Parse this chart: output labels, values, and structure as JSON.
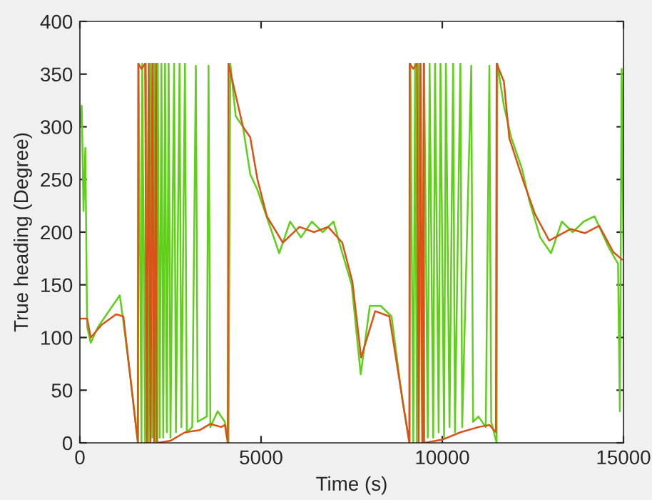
{
  "chart_data": {
    "type": "line",
    "xlabel": "Time (s)",
    "ylabel": "True heading (Degree)",
    "xlim": [
      0,
      15000
    ],
    "xticks": [
      0,
      5000,
      10000,
      15000
    ],
    "ylim": [
      0,
      400
    ],
    "yticks": [
      0,
      50,
      100,
      150,
      200,
      250,
      300,
      350,
      400
    ],
    "grid": false,
    "marker": "none",
    "line_style": "solid",
    "series": [
      {
        "color": "#5fcf1a",
        "x": [
          0,
          50,
          100,
          150,
          200,
          300,
          500,
          700,
          900,
          1100,
          1200,
          1400,
          1600,
          1620,
          1700,
          1720,
          1800,
          1820,
          1900,
          1950,
          2000,
          2050,
          2100,
          2150,
          2200,
          2250,
          2300,
          2350,
          2400,
          2450,
          2500,
          2600,
          2650,
          2750,
          2800,
          2900,
          2950,
          3100,
          3200,
          3250,
          3500,
          3550,
          3600,
          3800,
          4000,
          4100,
          4150,
          4300,
          4500,
          4700,
          4900,
          5100,
          5300,
          5500,
          5800,
          6100,
          6400,
          6700,
          7000,
          7200,
          7500,
          7750,
          8000,
          8300,
          8600,
          8900,
          9100,
          9120,
          9200,
          9250,
          9300,
          9350,
          9450,
          9500,
          9600,
          9650,
          9750,
          9800,
          9900,
          9950,
          10050,
          10100,
          10200,
          10300,
          10350,
          10500,
          10550,
          10800,
          10850,
          11000,
          11200,
          11300,
          11350,
          11500,
          11520,
          11700,
          11900,
          12200,
          12400,
          12700,
          13000,
          13300,
          13600,
          13900,
          14200,
          14400,
          14600,
          14850,
          14900,
          14950,
          15000
        ],
        "values": [
          300,
          320,
          220,
          280,
          110,
          95,
          110,
          120,
          130,
          140,
          115,
          60,
          0,
          360,
          0,
          360,
          0,
          360,
          0,
          360,
          5,
          360,
          0,
          360,
          5,
          360,
          5,
          360,
          10,
          360,
          5,
          360,
          10,
          360,
          15,
          360,
          10,
          15,
          358,
          20,
          25,
          358,
          15,
          30,
          20,
          0,
          360,
          310,
          300,
          255,
          240,
          220,
          200,
          180,
          210,
          195,
          210,
          200,
          210,
          185,
          150,
          65,
          130,
          130,
          120,
          40,
          0,
          360,
          0,
          360,
          0,
          360,
          0,
          360,
          5,
          360,
          5,
          360,
          10,
          360,
          5,
          360,
          15,
          360,
          10,
          360,
          15,
          358,
          20,
          25,
          15,
          358,
          20,
          0,
          360,
          320,
          290,
          260,
          230,
          195,
          180,
          210,
          200,
          210,
          215,
          200,
          185,
          170,
          30,
          355,
          180
        ]
      },
      {
        "color": "#d95319",
        "x": [
          0,
          200,
          300,
          600,
          1000,
          1200,
          1600,
          1610,
          1700,
          1800,
          1850,
          1900,
          1950,
          2000,
          2050,
          2100,
          2130,
          2500,
          2900,
          3300,
          3600,
          3900,
          4000,
          4080,
          4100,
          4300,
          4500,
          4700,
          4900,
          5160,
          5600,
          6060,
          6460,
          6850,
          7240,
          7520,
          7760,
          8150,
          8540,
          9090,
          9100,
          9200,
          9300,
          9350,
          9400,
          9450,
          9490,
          9500,
          10000,
          10500,
          11000,
          11300,
          11480,
          11500,
          11700,
          11850,
          12240,
          12560,
          12950,
          13540,
          13940,
          14330,
          14720,
          14960
        ],
        "values": [
          118,
          118,
          100,
          112,
          122,
          120,
          0,
          360,
          355,
          360,
          0,
          360,
          0,
          360,
          0,
          360,
          0,
          2,
          10,
          12,
          18,
          15,
          17,
          0,
          360,
          330,
          300,
          290,
          250,
          215,
          190,
          205,
          200,
          205,
          190,
          153,
          81,
          125,
          120,
          0,
          360,
          355,
          360,
          0,
          360,
          0,
          360,
          0,
          3,
          10,
          15,
          17,
          10,
          360,
          343,
          289,
          248,
          217,
          192,
          203,
          199,
          206,
          181,
          174
        ]
      }
    ]
  }
}
